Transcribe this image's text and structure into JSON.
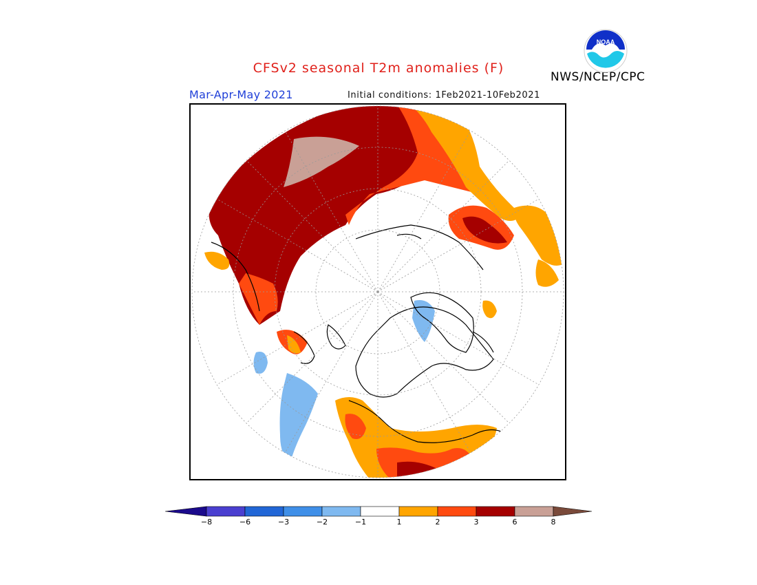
{
  "header": {
    "title": "CFSv2 seasonal T2m anomalies (F)",
    "agency": "NWS/NCEP/CPC",
    "season": "Mar-Apr-May 2021",
    "initial_conditions": "Initial conditions: 1Feb2021-10Feb2021",
    "logo_text": "NOAA"
  },
  "legend": {
    "labels": [
      "-8",
      "-6",
      "-3",
      "-2",
      "-1",
      "1",
      "2",
      "3",
      "6",
      "8"
    ],
    "colors": [
      "#1b0a8c",
      "#4a3fd0",
      "#2166d6",
      "#3f8fe8",
      "#7fb9f0",
      "#ffffff",
      "#ffa500",
      "#ff4a10",
      "#a50000",
      "#c9a096",
      "#7a4a3a"
    ]
  },
  "map": {
    "projection": "north-polar-stereographic",
    "colors": {
      "very_warm": "#a50000",
      "warm": "#ff4a10",
      "mild": "#ffa500",
      "extreme": "#c9a096",
      "cool": "#7fb9f0",
      "coast": "#000000"
    }
  }
}
